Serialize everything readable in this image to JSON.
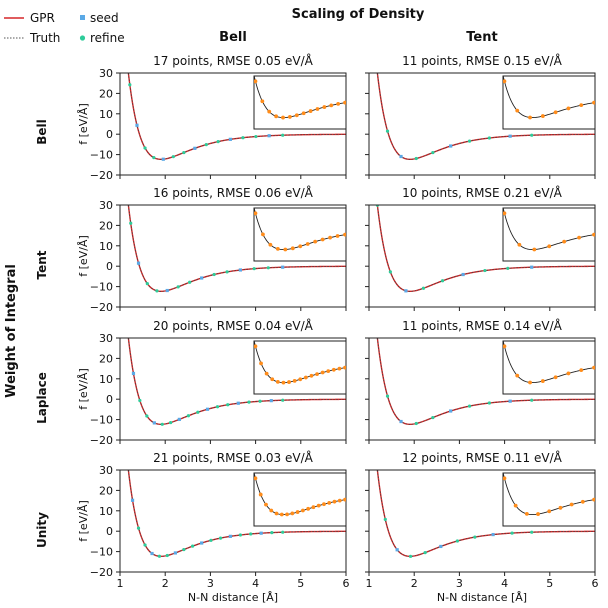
{
  "figure": {
    "title": "Scaling of Density",
    "row_group_label": "Weight of Integral",
    "columns": [
      "Bell",
      "Tent"
    ],
    "rows": [
      "Bell",
      "Tent",
      "Laplace",
      "Unity"
    ],
    "xlabel": "N-N distance [Å]",
    "ylabel": "f [eV/Å]"
  },
  "legend": {
    "items": [
      {
        "label": "GPR",
        "color": "#d62728",
        "style": "solid-line"
      },
      {
        "label": "seed",
        "color": "#5aa9e6",
        "style": "square-marker"
      },
      {
        "label": "Truth",
        "color": "#555555",
        "style": "dotted-line"
      },
      {
        "label": "refine",
        "color": "#2ecc9a",
        "style": "circle-marker"
      }
    ]
  },
  "colors": {
    "gpr": "#d62728",
    "truth": "#444444",
    "seed": "#5aa9e6",
    "refine": "#2ecc9a",
    "inset_points": "#ff8c1a"
  },
  "chart_data": [
    {
      "type": "line",
      "row": "Bell",
      "column": "Bell",
      "title": "17 points,  RMSE 0.05 eV/Å",
      "points": 17,
      "xlim": [
        1,
        6
      ],
      "ylim": [
        -20,
        30
      ],
      "xticks": [
        1,
        2,
        3,
        4,
        5,
        6
      ],
      "yticks": [
        30,
        20,
        10,
        0,
        -10,
        -20
      ],
      "series": [
        {
          "name": "GPR"
        },
        {
          "name": "Truth"
        },
        {
          "name": "seed"
        },
        {
          "name": "refine"
        }
      ]
    },
    {
      "type": "line",
      "row": "Bell",
      "column": "Tent",
      "title": "11 points,  RMSE 0.15 eV/Å",
      "points": 11,
      "xlim": [
        1,
        6
      ],
      "ylim": [
        -20,
        30
      ],
      "xticks": [
        1,
        2,
        3,
        4,
        5,
        6
      ],
      "yticks": [
        30,
        20,
        10,
        0,
        -10,
        -20
      ],
      "series": [
        {
          "name": "GPR"
        },
        {
          "name": "Truth"
        },
        {
          "name": "seed"
        },
        {
          "name": "refine"
        }
      ]
    },
    {
      "type": "line",
      "row": "Tent",
      "column": "Bell",
      "title": "16 points,  RMSE 0.06 eV/Å",
      "points": 16,
      "xlim": [
        1,
        6
      ],
      "ylim": [
        -20,
        30
      ],
      "xticks": [
        1,
        2,
        3,
        4,
        5,
        6
      ],
      "yticks": [
        30,
        20,
        10,
        0,
        -10,
        -20
      ],
      "series": [
        {
          "name": "GPR"
        },
        {
          "name": "Truth"
        },
        {
          "name": "seed"
        },
        {
          "name": "refine"
        }
      ]
    },
    {
      "type": "line",
      "row": "Tent",
      "column": "Tent",
      "title": "10 points,  RMSE 0.21 eV/Å",
      "points": 10,
      "xlim": [
        1,
        6
      ],
      "ylim": [
        -20,
        30
      ],
      "xticks": [
        1,
        2,
        3,
        4,
        5,
        6
      ],
      "yticks": [
        30,
        20,
        10,
        0,
        -10,
        -20
      ],
      "series": [
        {
          "name": "GPR"
        },
        {
          "name": "Truth"
        },
        {
          "name": "seed"
        },
        {
          "name": "refine"
        }
      ]
    },
    {
      "type": "line",
      "row": "Laplace",
      "column": "Bell",
      "title": "20 points,  RMSE 0.04 eV/Å",
      "points": 20,
      "xlim": [
        1,
        6
      ],
      "ylim": [
        -20,
        30
      ],
      "xticks": [
        1,
        2,
        3,
        4,
        5,
        6
      ],
      "yticks": [
        30,
        20,
        10,
        0,
        -10,
        -20
      ],
      "series": [
        {
          "name": "GPR"
        },
        {
          "name": "Truth"
        },
        {
          "name": "seed"
        },
        {
          "name": "refine"
        }
      ]
    },
    {
      "type": "line",
      "row": "Laplace",
      "column": "Tent",
      "title": "11 points,  RMSE 0.14 eV/Å",
      "points": 11,
      "xlim": [
        1,
        6
      ],
      "ylim": [
        -20,
        30
      ],
      "xticks": [
        1,
        2,
        3,
        4,
        5,
        6
      ],
      "yticks": [
        30,
        20,
        10,
        0,
        -10,
        -20
      ],
      "series": [
        {
          "name": "GPR"
        },
        {
          "name": "Truth"
        },
        {
          "name": "seed"
        },
        {
          "name": "refine"
        }
      ]
    },
    {
      "type": "line",
      "row": "Unity",
      "column": "Bell",
      "title": "21 points,  RMSE 0.03 eV/Å",
      "points": 21,
      "xlim": [
        1,
        6
      ],
      "ylim": [
        -20,
        30
      ],
      "xticks": [
        1,
        2,
        3,
        4,
        5,
        6
      ],
      "yticks": [
        30,
        20,
        10,
        0,
        -10,
        -20
      ],
      "series": [
        {
          "name": "GPR"
        },
        {
          "name": "Truth"
        },
        {
          "name": "seed"
        },
        {
          "name": "refine"
        }
      ]
    },
    {
      "type": "line",
      "row": "Unity",
      "column": "Tent",
      "title": "12 points,  RMSE 0.11 eV/Å",
      "points": 12,
      "xlim": [
        1,
        6
      ],
      "ylim": [
        -20,
        30
      ],
      "xticks": [
        1,
        2,
        3,
        4,
        5,
        6
      ],
      "yticks": [
        30,
        20,
        10,
        0,
        -10,
        -20
      ],
      "series": [
        {
          "name": "GPR"
        },
        {
          "name": "Truth"
        },
        {
          "name": "seed"
        },
        {
          "name": "refine"
        }
      ]
    }
  ]
}
